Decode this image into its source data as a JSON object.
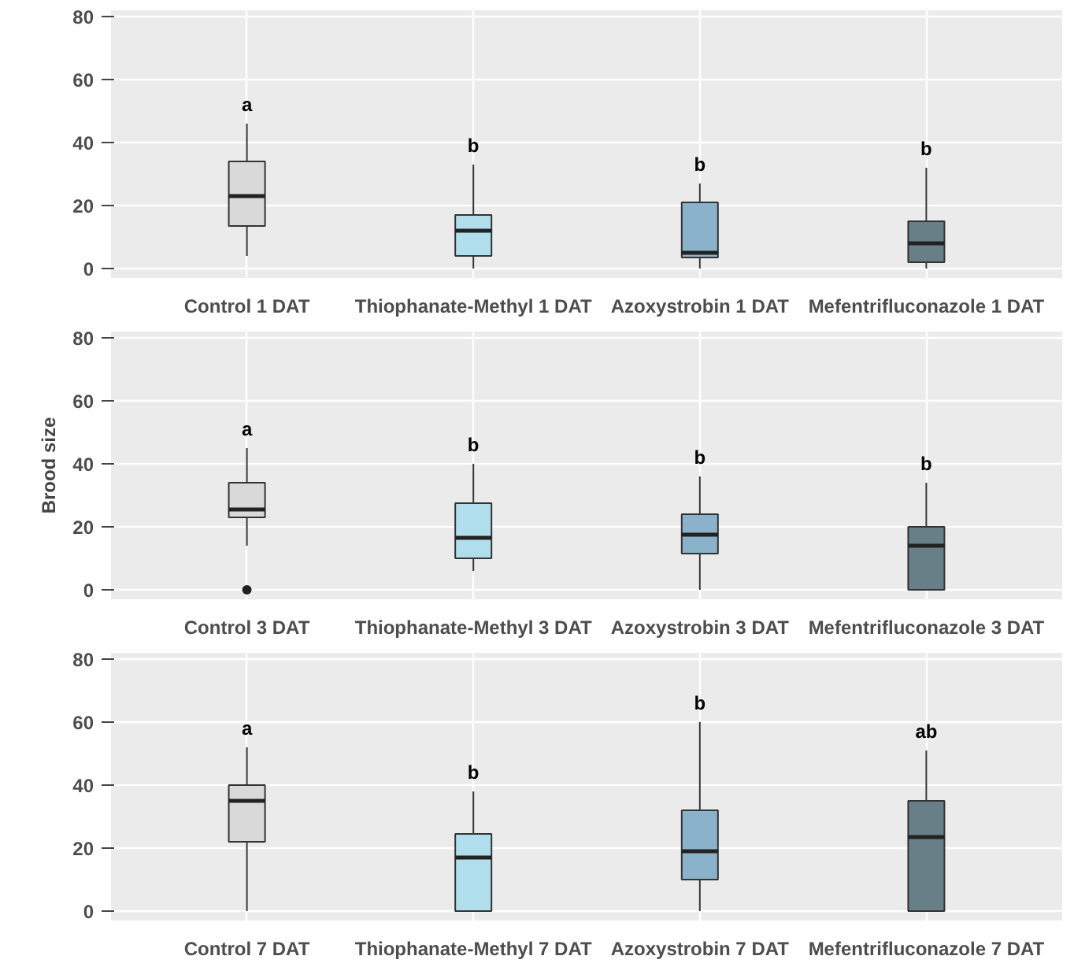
{
  "chart_data": [
    {
      "type": "box",
      "categories": [
        "Control 1 DAT",
        "Thiophanate-Methyl 1 DAT",
        "Azoxystrobin 1 DAT",
        "Mefentrifluconazole 1 DAT"
      ],
      "colors": [
        "#d9d9d9",
        "#b0deec",
        "#8ab3cb",
        "#687f87"
      ],
      "ylim": [
        -3,
        82
      ],
      "yticks": [
        0,
        20,
        40,
        60,
        80
      ],
      "grid": true,
      "boxes": [
        {
          "low": 4,
          "q1": 13.5,
          "median": 23,
          "q3": 34,
          "high": 46
        },
        {
          "low": 0,
          "q1": 4,
          "median": 12,
          "q3": 17,
          "high": 33
        },
        {
          "low": 0,
          "q1": 3.5,
          "median": 5,
          "q3": 21,
          "high": 27
        },
        {
          "low": 0,
          "q1": 2,
          "median": 8,
          "q3": 15,
          "high": 32
        }
      ],
      "annotations": [
        "a",
        "b",
        "b",
        "b"
      ]
    },
    {
      "type": "box",
      "ylabel": "Brood size",
      "categories": [
        "Control 3 DAT",
        "Thiophanate-Methyl 3 DAT",
        "Azoxystrobin 3 DAT",
        "Mefentrifluconazole 3 DAT"
      ],
      "colors": [
        "#d9d9d9",
        "#b0deec",
        "#8ab3cb",
        "#687f87"
      ],
      "ylim": [
        -3,
        82
      ],
      "yticks": [
        0,
        20,
        40,
        60,
        80
      ],
      "grid": true,
      "boxes": [
        {
          "low": 14,
          "q1": 23,
          "median": 25.5,
          "q3": 34,
          "high": 45,
          "outliers": [
            0
          ]
        },
        {
          "low": 6,
          "q1": 10,
          "median": 16.5,
          "q3": 27.5,
          "high": 40
        },
        {
          "low": 0,
          "q1": 11.5,
          "median": 17.5,
          "q3": 24,
          "high": 36
        },
        {
          "low": 0,
          "q1": 0,
          "median": 14,
          "q3": 20,
          "high": 34
        }
      ],
      "annotations": [
        "a",
        "b",
        "b",
        "b"
      ]
    },
    {
      "type": "box",
      "categories": [
        "Control 7 DAT",
        "Thiophanate-Methyl 7 DAT",
        "Azoxystrobin 7 DAT",
        "Mefentrifluconazole 7 DAT"
      ],
      "colors": [
        "#d9d9d9",
        "#b0deec",
        "#8ab3cb",
        "#687f87"
      ],
      "ylim": [
        -3,
        82
      ],
      "yticks": [
        0,
        20,
        40,
        60,
        80
      ],
      "grid": true,
      "boxes": [
        {
          "low": 0,
          "q1": 22,
          "median": 35,
          "q3": 40,
          "high": 52
        },
        {
          "low": 0,
          "q1": 0,
          "median": 17,
          "q3": 24.5,
          "high": 38
        },
        {
          "low": 0,
          "q1": 10,
          "median": 19,
          "q3": 32,
          "high": 60
        },
        {
          "low": 0,
          "q1": 0,
          "median": 23.5,
          "q3": 35,
          "high": 51
        }
      ],
      "annotations": [
        "a",
        "b",
        "b",
        "ab"
      ]
    }
  ]
}
